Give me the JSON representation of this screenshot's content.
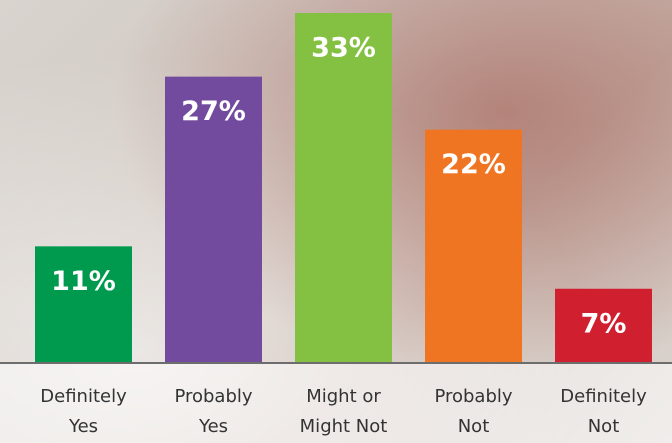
{
  "chart_data": {
    "type": "bar",
    "categories": [
      [
        "Definitely",
        "Yes"
      ],
      [
        "Probably",
        "Yes"
      ],
      [
        "Might or",
        "Might Not"
      ],
      [
        "Probably",
        "Not"
      ],
      [
        "Definitely",
        "Not"
      ]
    ],
    "values": [
      11,
      27,
      33,
      22,
      7
    ],
    "value_labels": [
      "11%",
      "27%",
      "33%",
      "22%",
      "7%"
    ],
    "colors": [
      "#009a4e",
      "#724b9f",
      "#84c041",
      "#ef7523",
      "#d01f2f"
    ]
  }
}
